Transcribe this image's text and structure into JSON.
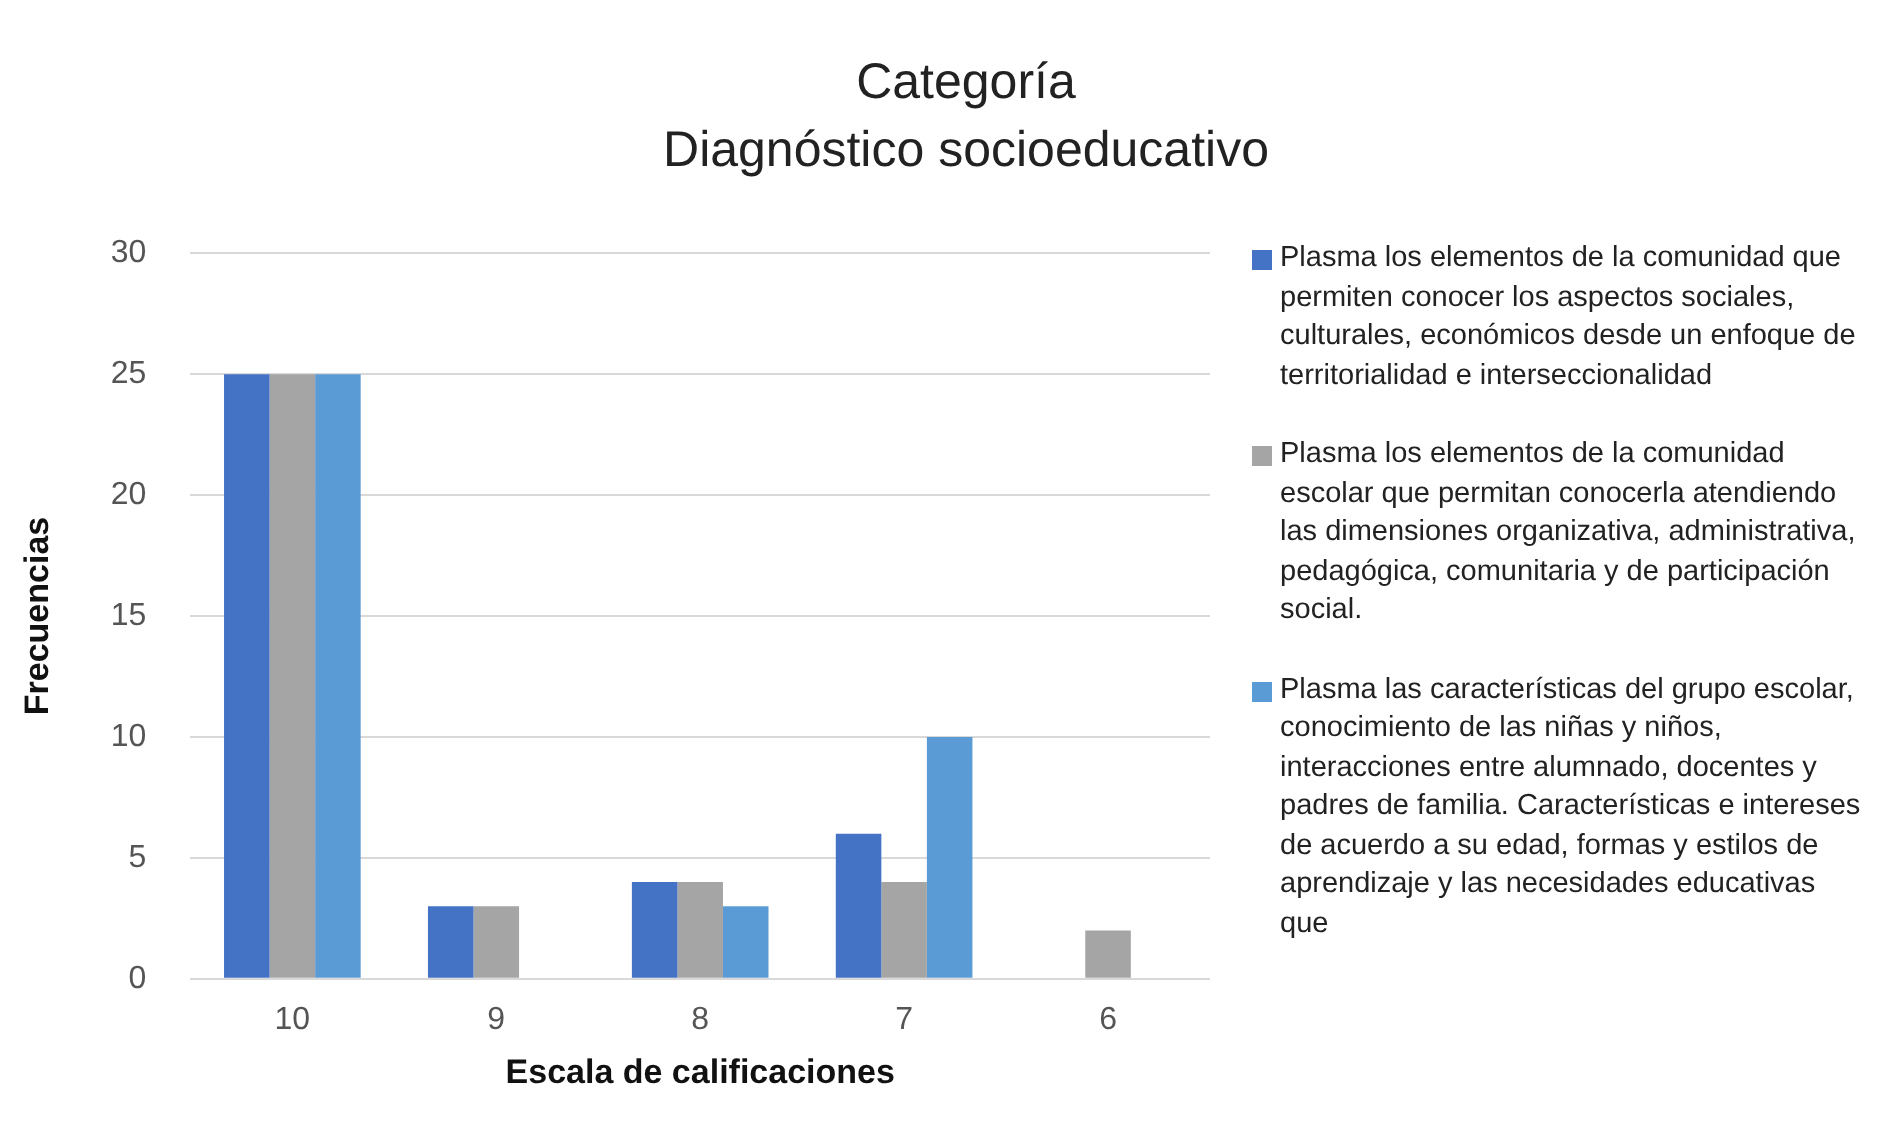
{
  "chart_data": {
    "type": "bar",
    "title": "Categoría\nDiagnóstico socioeducativo",
    "xlabel": "Escala de calificaciones",
    "ylabel": "Frecuencias",
    "categories": [
      "10",
      "9",
      "8",
      "7",
      "6"
    ],
    "series": [
      {
        "name": "Plasma los elementos de la comunidad que permiten conocer los aspectos sociales, culturales, económicos desde un enfoque de territorialidad e interseccionalidad",
        "color": "#4472c4",
        "values": [
          25,
          3,
          4,
          6,
          null
        ]
      },
      {
        "name": "Plasma los elementos de la comunidad escolar que permitan conocerla atendiendo las dimensiones organizativa, administrativa, pedagógica, comunitaria y de participación social.",
        "color": "#a5a5a5",
        "values": [
          25,
          3,
          4,
          4,
          2
        ]
      },
      {
        "name": "Plasma las características del grupo escolar, conocimiento de las niñas y niños, interacciones entre alumnado, docentes y padres de familia. Características e intereses de acuerdo a su edad, formas y estilos de aprendizaje y las necesidades educativas que",
        "color": "#5b9bd5",
        "values": [
          25,
          null,
          3,
          10,
          null
        ]
      }
    ],
    "ylim": [
      0,
      30
    ],
    "yticks": [
      0,
      5,
      10,
      15,
      20,
      25,
      30
    ],
    "grid": "y",
    "legend": "right"
  }
}
